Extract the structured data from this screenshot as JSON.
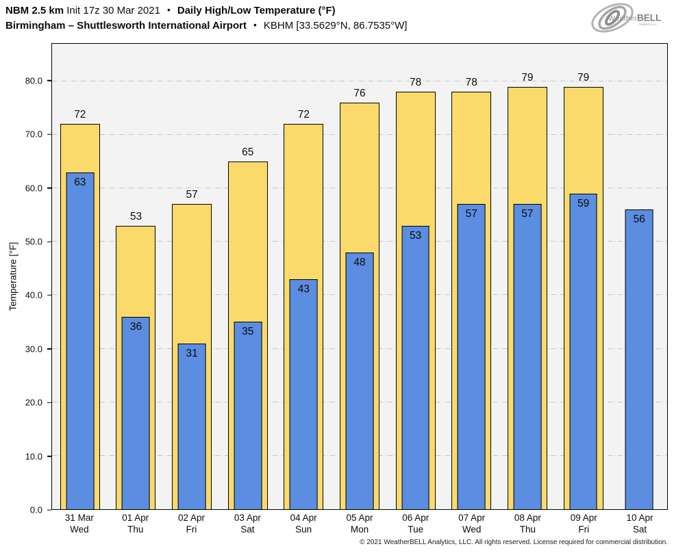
{
  "header": {
    "model": "NBM 2.5 km",
    "init": "Init 17z 30 Mar 2021",
    "bullet": "•",
    "product": "Daily High/Low Temperature (°F)",
    "location": "Birmingham – Shuttlesworth International Airport",
    "station": "KBHM [33.5629°N, 86.7535°W]",
    "logo": {
      "name_regular": "Weather",
      "name_bold": "BELL",
      "sub": "Analytics LLC"
    }
  },
  "chart_data": {
    "type": "bar",
    "title": "NBM 2.5 km Init 17z 30 Mar 2021 • Daily High/Low Temperature (°F)",
    "subtitle": "Birmingham – Shuttlesworth International Airport • KBHM [33.5629°N, 86.7535°W]",
    "xlabel": "",
    "ylabel": "Temperature [°F]",
    "ylim": [
      0,
      87
    ],
    "yticks": [
      0,
      10,
      20,
      30,
      40,
      50,
      60,
      70,
      80
    ],
    "ytick_labels": [
      "0.0",
      "10.0",
      "20.0",
      "30.0",
      "40.0",
      "50.0",
      "60.0",
      "70.0",
      "80.0"
    ],
    "grid": "horizontal dash-dot",
    "legend": "none",
    "plot_bg": "#f3f3f3",
    "bar_outline": "#000000",
    "categories": [
      "31 Mar",
      "01 Apr",
      "02 Apr",
      "03 Apr",
      "04 Apr",
      "05 Apr",
      "06 Apr",
      "07 Apr",
      "08 Apr",
      "09 Apr",
      "10 Apr"
    ],
    "weekdays": [
      "Wed",
      "Thu",
      "Fri",
      "Sat",
      "Sun",
      "Mon",
      "Tue",
      "Wed",
      "Thu",
      "Fri",
      "Sat"
    ],
    "series": [
      {
        "name": "High",
        "color": "#FBDA6C",
        "values": [
          72,
          53,
          57,
          65,
          72,
          76,
          78,
          78,
          79,
          79,
          null
        ]
      },
      {
        "name": "Low",
        "color": "#5B8DE0",
        "values": [
          63,
          36,
          31,
          35,
          43,
          48,
          53,
          57,
          57,
          59,
          56
        ]
      }
    ]
  },
  "footer": {
    "copyright": "© 2021 WeatherBELL Analytics, LLC. All rights reserved. License required for commercial distribution."
  }
}
